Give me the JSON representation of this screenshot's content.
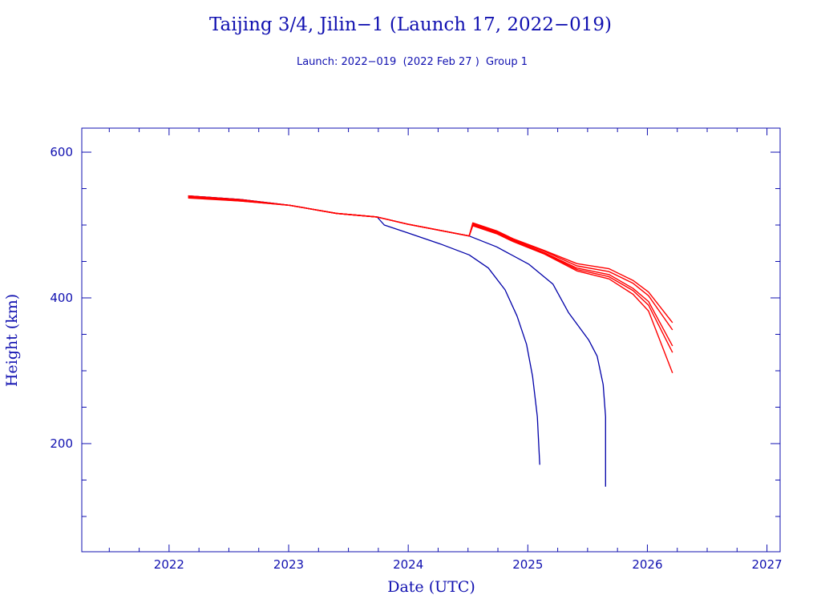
{
  "chart_data": {
    "type": "line",
    "title": "Taijing 3/4, Jilin−1 (Launch 17, 2022−019)",
    "subtitle": "Launch: 2022−019  (2022 Feb 27 )  Group 1",
    "xlabel": "Date (UTC)",
    "ylabel": "Height (km)",
    "xlim": [
      2021.27,
      2027.11
    ],
    "ylim": [
      51.6,
      633
    ],
    "xticks": [
      "2022",
      "2023",
      "2024",
      "2025",
      "2026",
      "2027"
    ],
    "yticks": [
      "200",
      "400",
      "600"
    ],
    "grid": false,
    "colors": {
      "axis": "#1010b0",
      "blue": "#0000a8",
      "red": "#ff0000"
    },
    "series": [
      {
        "name": "blue-1",
        "color": "blue",
        "x": [
          2022.16,
          2022.6,
          2023.01,
          2023.4,
          2023.74,
          2023.8,
          2024.0,
          2024.27,
          2024.51,
          2024.67,
          2024.81,
          2024.91,
          2024.99,
          2025.04,
          2025.08,
          2025.1
        ],
        "y": [
          540,
          535,
          527,
          516,
          511,
          500,
          489,
          474,
          459,
          441,
          411,
          375,
          336,
          292,
          237,
          171
        ]
      },
      {
        "name": "blue-2",
        "color": "blue",
        "x": [
          2022.16,
          2022.6,
          2023.01,
          2023.4,
          2023.74,
          2024.0,
          2024.51,
          2024.74,
          2025.01,
          2025.21,
          2025.34,
          2025.51,
          2025.58,
          2025.63,
          2025.65,
          2025.65
        ],
        "y": [
          540,
          535,
          527,
          516,
          511,
          501,
          485,
          470,
          446,
          419,
          380,
          342,
          320,
          281,
          237,
          141
        ]
      },
      {
        "name": "red-1",
        "color": "red",
        "x": [
          2022.16,
          2022.6,
          2023.01,
          2023.4,
          2023.74,
          2024.0,
          2024.51,
          2024.54,
          2024.74,
          2024.88,
          2025.14,
          2025.41,
          2025.68,
          2025.88,
          2026.01,
          2026.21
        ],
        "y": [
          540,
          535,
          527,
          516,
          511,
          501,
          485,
          503,
          492,
          481,
          465,
          447,
          440,
          424,
          408,
          366
        ]
      },
      {
        "name": "red-2",
        "color": "red",
        "x": [
          2022.16,
          2022.6,
          2023.01,
          2023.4,
          2023.74,
          2024.0,
          2024.51,
          2024.54,
          2024.74,
          2024.88,
          2025.14,
          2025.41,
          2025.68,
          2025.88,
          2026.01,
          2026.21
        ],
        "y": [
          539,
          534,
          527,
          516,
          511,
          501,
          485,
          502,
          491,
          480,
          464,
          444,
          436,
          420,
          403,
          356
        ]
      },
      {
        "name": "red-3",
        "color": "red",
        "x": [
          2022.16,
          2022.6,
          2023.01,
          2023.4,
          2023.74,
          2024.0,
          2024.51,
          2024.54,
          2024.74,
          2024.88,
          2025.14,
          2025.41,
          2025.68,
          2025.88,
          2026.01,
          2026.21
        ],
        "y": [
          538,
          534,
          527,
          516,
          511,
          501,
          485,
          501,
          490,
          479,
          462,
          441,
          432,
          413,
          395,
          334
        ]
      },
      {
        "name": "red-4",
        "color": "red",
        "x": [
          2022.16,
          2022.6,
          2023.01,
          2023.4,
          2023.74,
          2024.0,
          2024.51,
          2024.54,
          2024.74,
          2024.88,
          2025.14,
          2025.41,
          2025.68,
          2025.88,
          2026.01,
          2026.21
        ],
        "y": [
          538,
          533,
          527,
          516,
          511,
          501,
          485,
          500,
          489,
          478,
          461,
          439,
          429,
          410,
          390,
          325
        ]
      },
      {
        "name": "red-5",
        "color": "red",
        "x": [
          2022.16,
          2022.6,
          2023.01,
          2023.4,
          2023.74,
          2024.0,
          2024.51,
          2024.54,
          2024.74,
          2024.88,
          2025.14,
          2025.41,
          2025.68,
          2025.88,
          2026.01,
          2026.21
        ],
        "y": [
          537,
          533,
          527,
          516,
          511,
          501,
          485,
          499,
          488,
          477,
          460,
          437,
          426,
          405,
          382,
          297
        ]
      }
    ]
  }
}
